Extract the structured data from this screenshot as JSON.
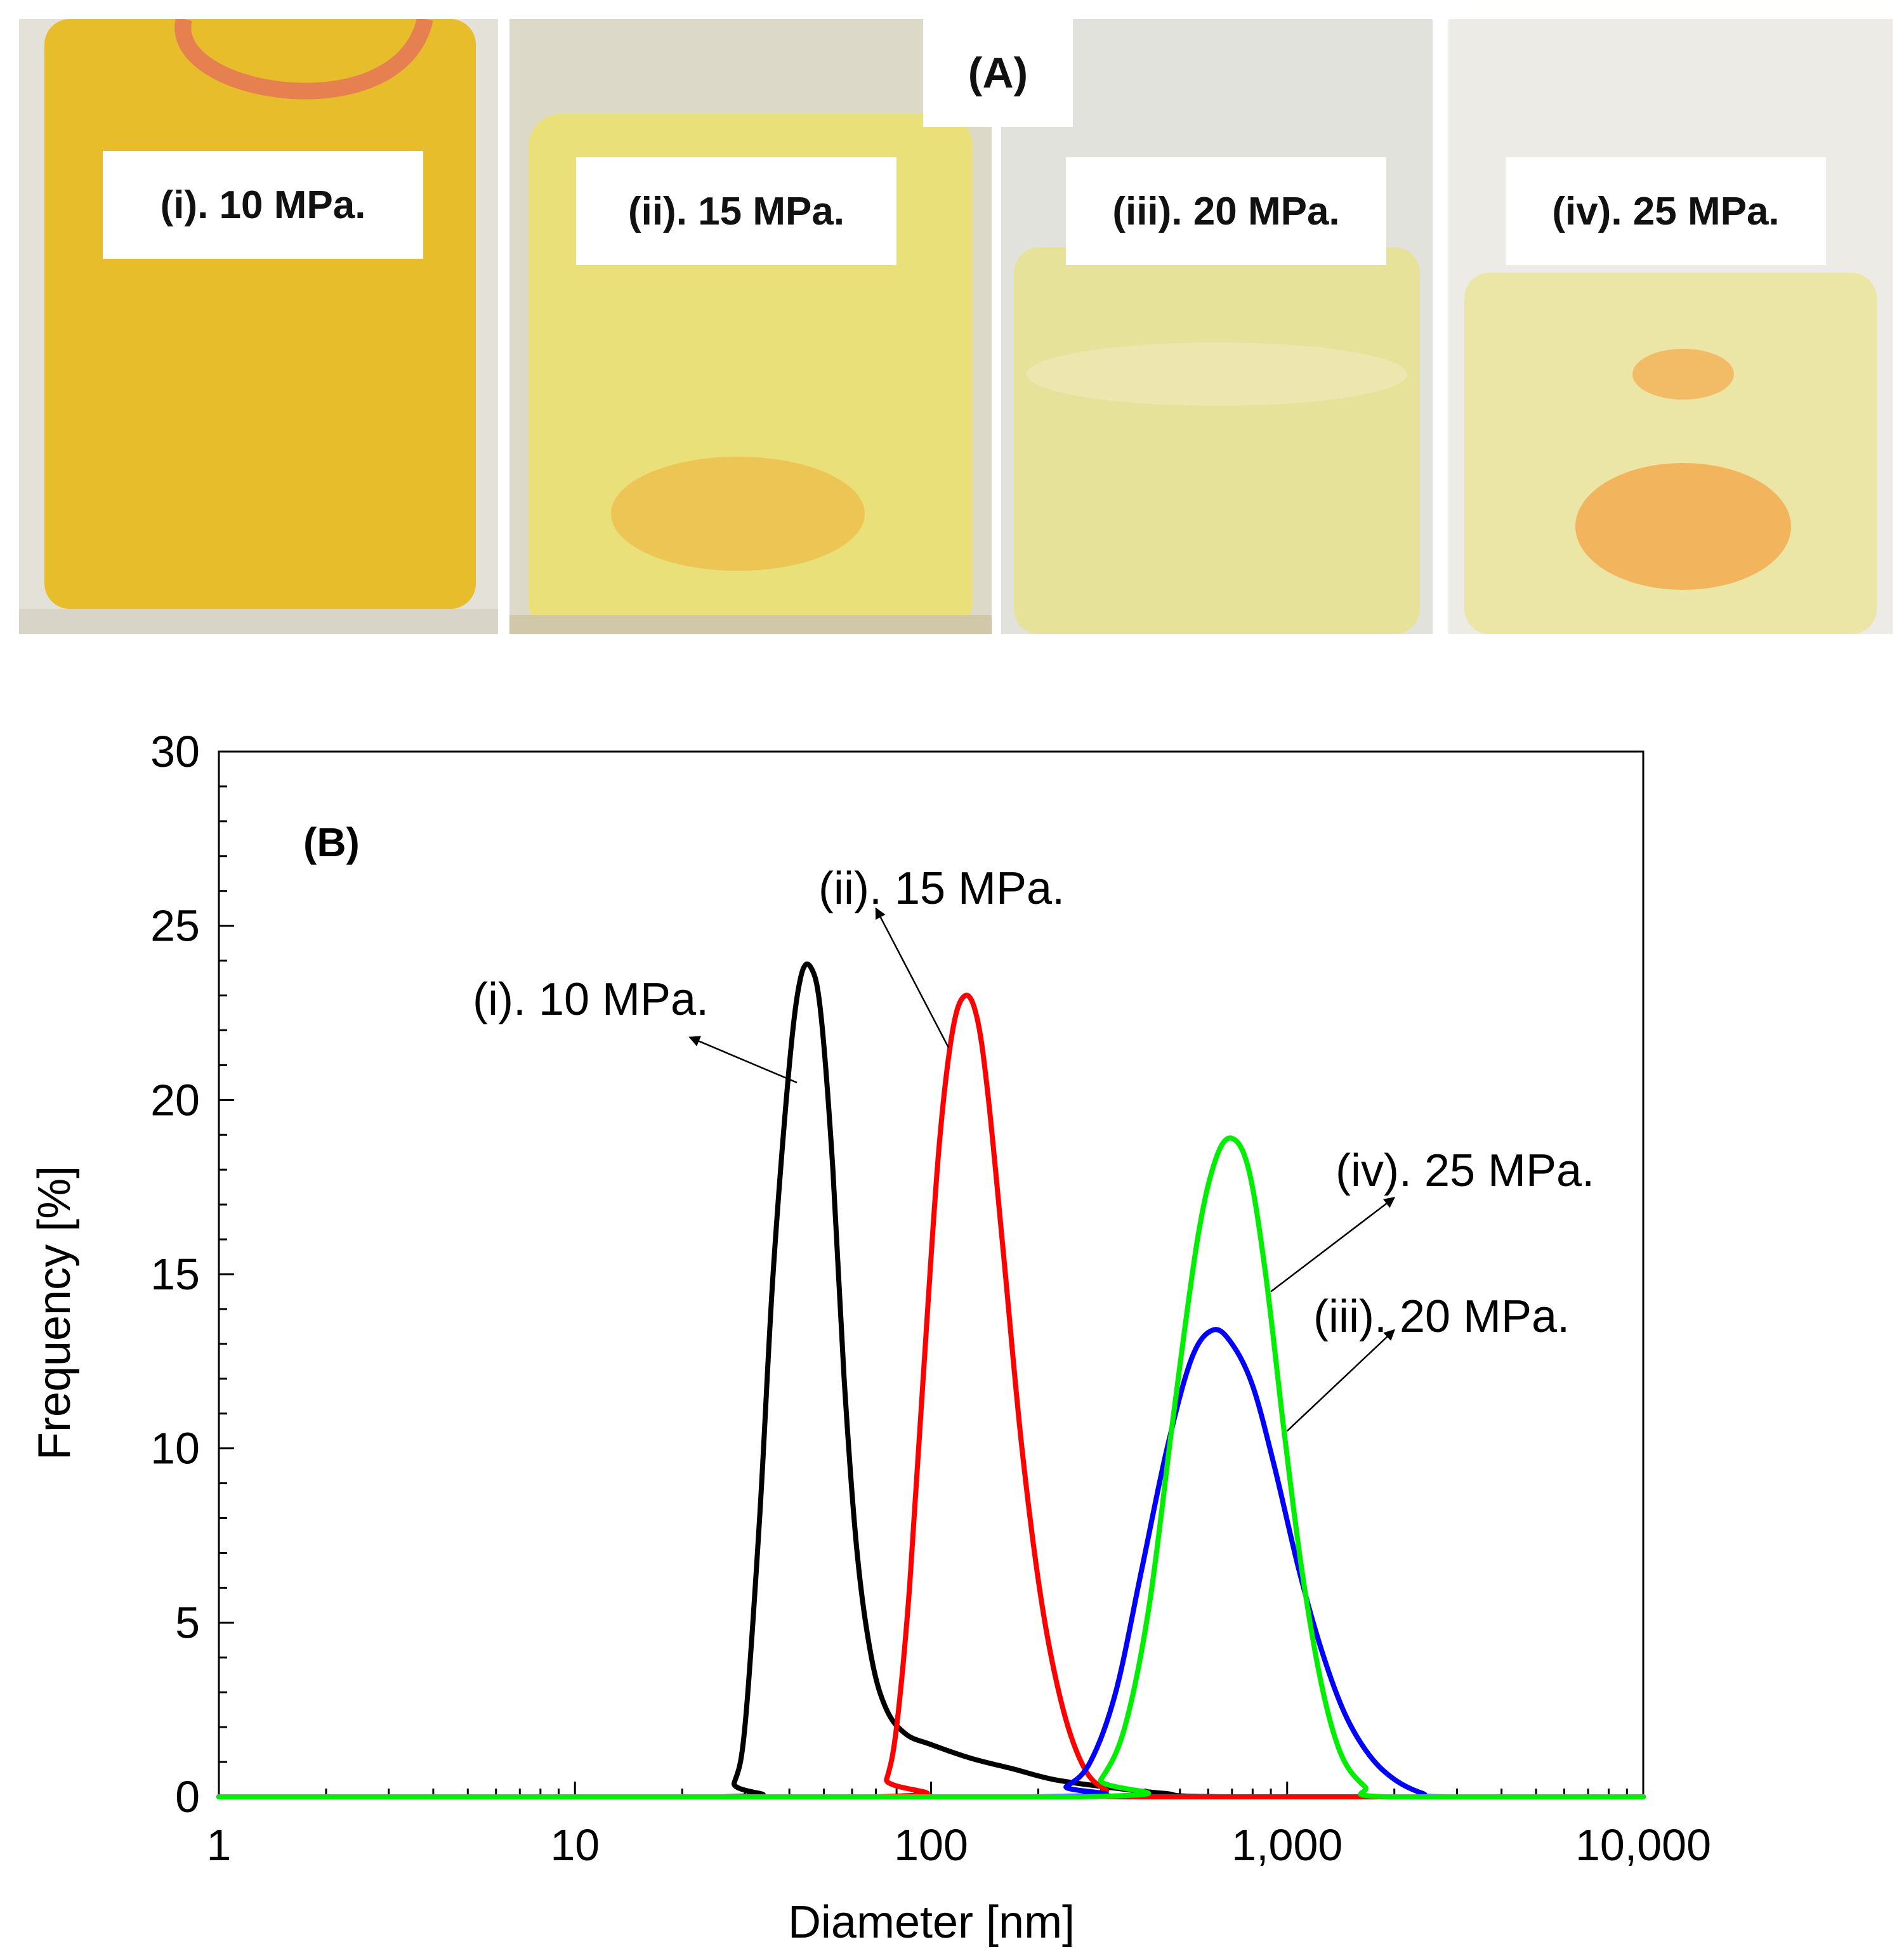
{
  "panel_a": {
    "title": "(A)",
    "photos": [
      {
        "label": "(i). 10 MPa.",
        "liquid_color": "#e8bd2c"
      },
      {
        "label": "(ii). 15 MPa.",
        "liquid_color": "#e9e07a"
      },
      {
        "label": "(iii). 20 MPa.",
        "liquid_color": "#e6e29a"
      },
      {
        "label": "(iv). 25 MPa.",
        "liquid_color": "#ebe6a6"
      }
    ]
  },
  "chart_data": {
    "type": "line",
    "panel_label": "(B)",
    "xlabel": "Diameter [nm]",
    "ylabel": "Frequency [%]",
    "xscale": "log",
    "xlim": [
      1,
      10000
    ],
    "ylim": [
      0,
      30
    ],
    "x_ticks": [
      1,
      10,
      100,
      1000,
      10000
    ],
    "x_tick_labels": [
      "1",
      "10",
      "100",
      "1,000",
      "10,000"
    ],
    "y_ticks": [
      0,
      5,
      10,
      15,
      20,
      25,
      30
    ],
    "y_tick_labels": [
      "0",
      "5",
      "10",
      "15",
      "20",
      "25",
      "30"
    ],
    "series": [
      {
        "name": "(i). 10 MPa.",
        "color": "#000000",
        "x": [
          1,
          26,
          28,
          30,
          33,
          36,
          40,
          43,
          46,
          49,
          53,
          57,
          62,
          68,
          75,
          85,
          100,
          130,
          170,
          220,
          300,
          450,
          700,
          10000
        ],
        "y": [
          0,
          0,
          0.4,
          2,
          8,
          15,
          21,
          23.5,
          23.8,
          22.5,
          18,
          12,
          7,
          4,
          2.5,
          1.8,
          1.5,
          1.1,
          0.8,
          0.5,
          0.3,
          0.1,
          0,
          0
        ]
      },
      {
        "name": "(ii). 15 MPa.",
        "color": "#ff0000",
        "x": [
          1,
          70,
          75,
          80,
          87,
          95,
          105,
          115,
          125,
          135,
          145,
          160,
          180,
          205,
          235,
          270,
          310,
          360,
          10000
        ],
        "y": [
          0,
          0,
          0.5,
          2,
          6,
          12,
          18.5,
          22,
          23,
          22.3,
          20,
          15.5,
          10,
          5.5,
          2.5,
          0.8,
          0.2,
          0,
          0
        ]
      },
      {
        "name": "(iii). 20 MPa.",
        "color": "#0000ff",
        "x": [
          1,
          200,
          240,
          280,
          330,
          390,
          460,
          540,
          620,
          700,
          800,
          920,
          1080,
          1250,
          1450,
          1700,
          2000,
          2400,
          2800,
          10000
        ],
        "y": [
          0,
          0,
          0.3,
          1,
          3,
          6.5,
          10,
          12.6,
          13.4,
          13,
          11.8,
          9.5,
          6.5,
          4.2,
          2.4,
          1.2,
          0.5,
          0.1,
          0,
          0
        ]
      },
      {
        "name": "(iv). 25 MPa.",
        "color": "#00ee00",
        "x": [
          1,
          260,
          300,
          350,
          410,
          480,
          560,
          630,
          700,
          780,
          870,
          980,
          1100,
          1250,
          1420,
          1650,
          1900,
          10000
        ],
        "y": [
          0,
          0,
          0.5,
          2,
          5.5,
          11,
          16,
          18.3,
          18.9,
          18,
          15,
          10.5,
          6.5,
          3.2,
          1.2,
          0.3,
          0,
          0
        ]
      }
    ],
    "annotations": [
      {
        "text": "(i). 10 MPa.",
        "series": 0,
        "arrow_from": [
          42,
          20.5
        ],
        "arrow_to": [
          21,
          21.8
        ]
      },
      {
        "text": "(ii). 15 MPa.",
        "series": 1,
        "arrow_from": [
          112,
          21.5
        ],
        "arrow_to": [
          70,
          25.5
        ]
      },
      {
        "text": "(iv). 25 MPa.",
        "series": 3,
        "arrow_from": [
          900,
          14.5
        ],
        "arrow_to": [
          2000,
          17.2
        ]
      },
      {
        "text": "(iii). 20 MPa.",
        "series": 2,
        "arrow_from": [
          1000,
          10.5
        ],
        "arrow_to": [
          2000,
          13.4
        ]
      }
    ]
  }
}
